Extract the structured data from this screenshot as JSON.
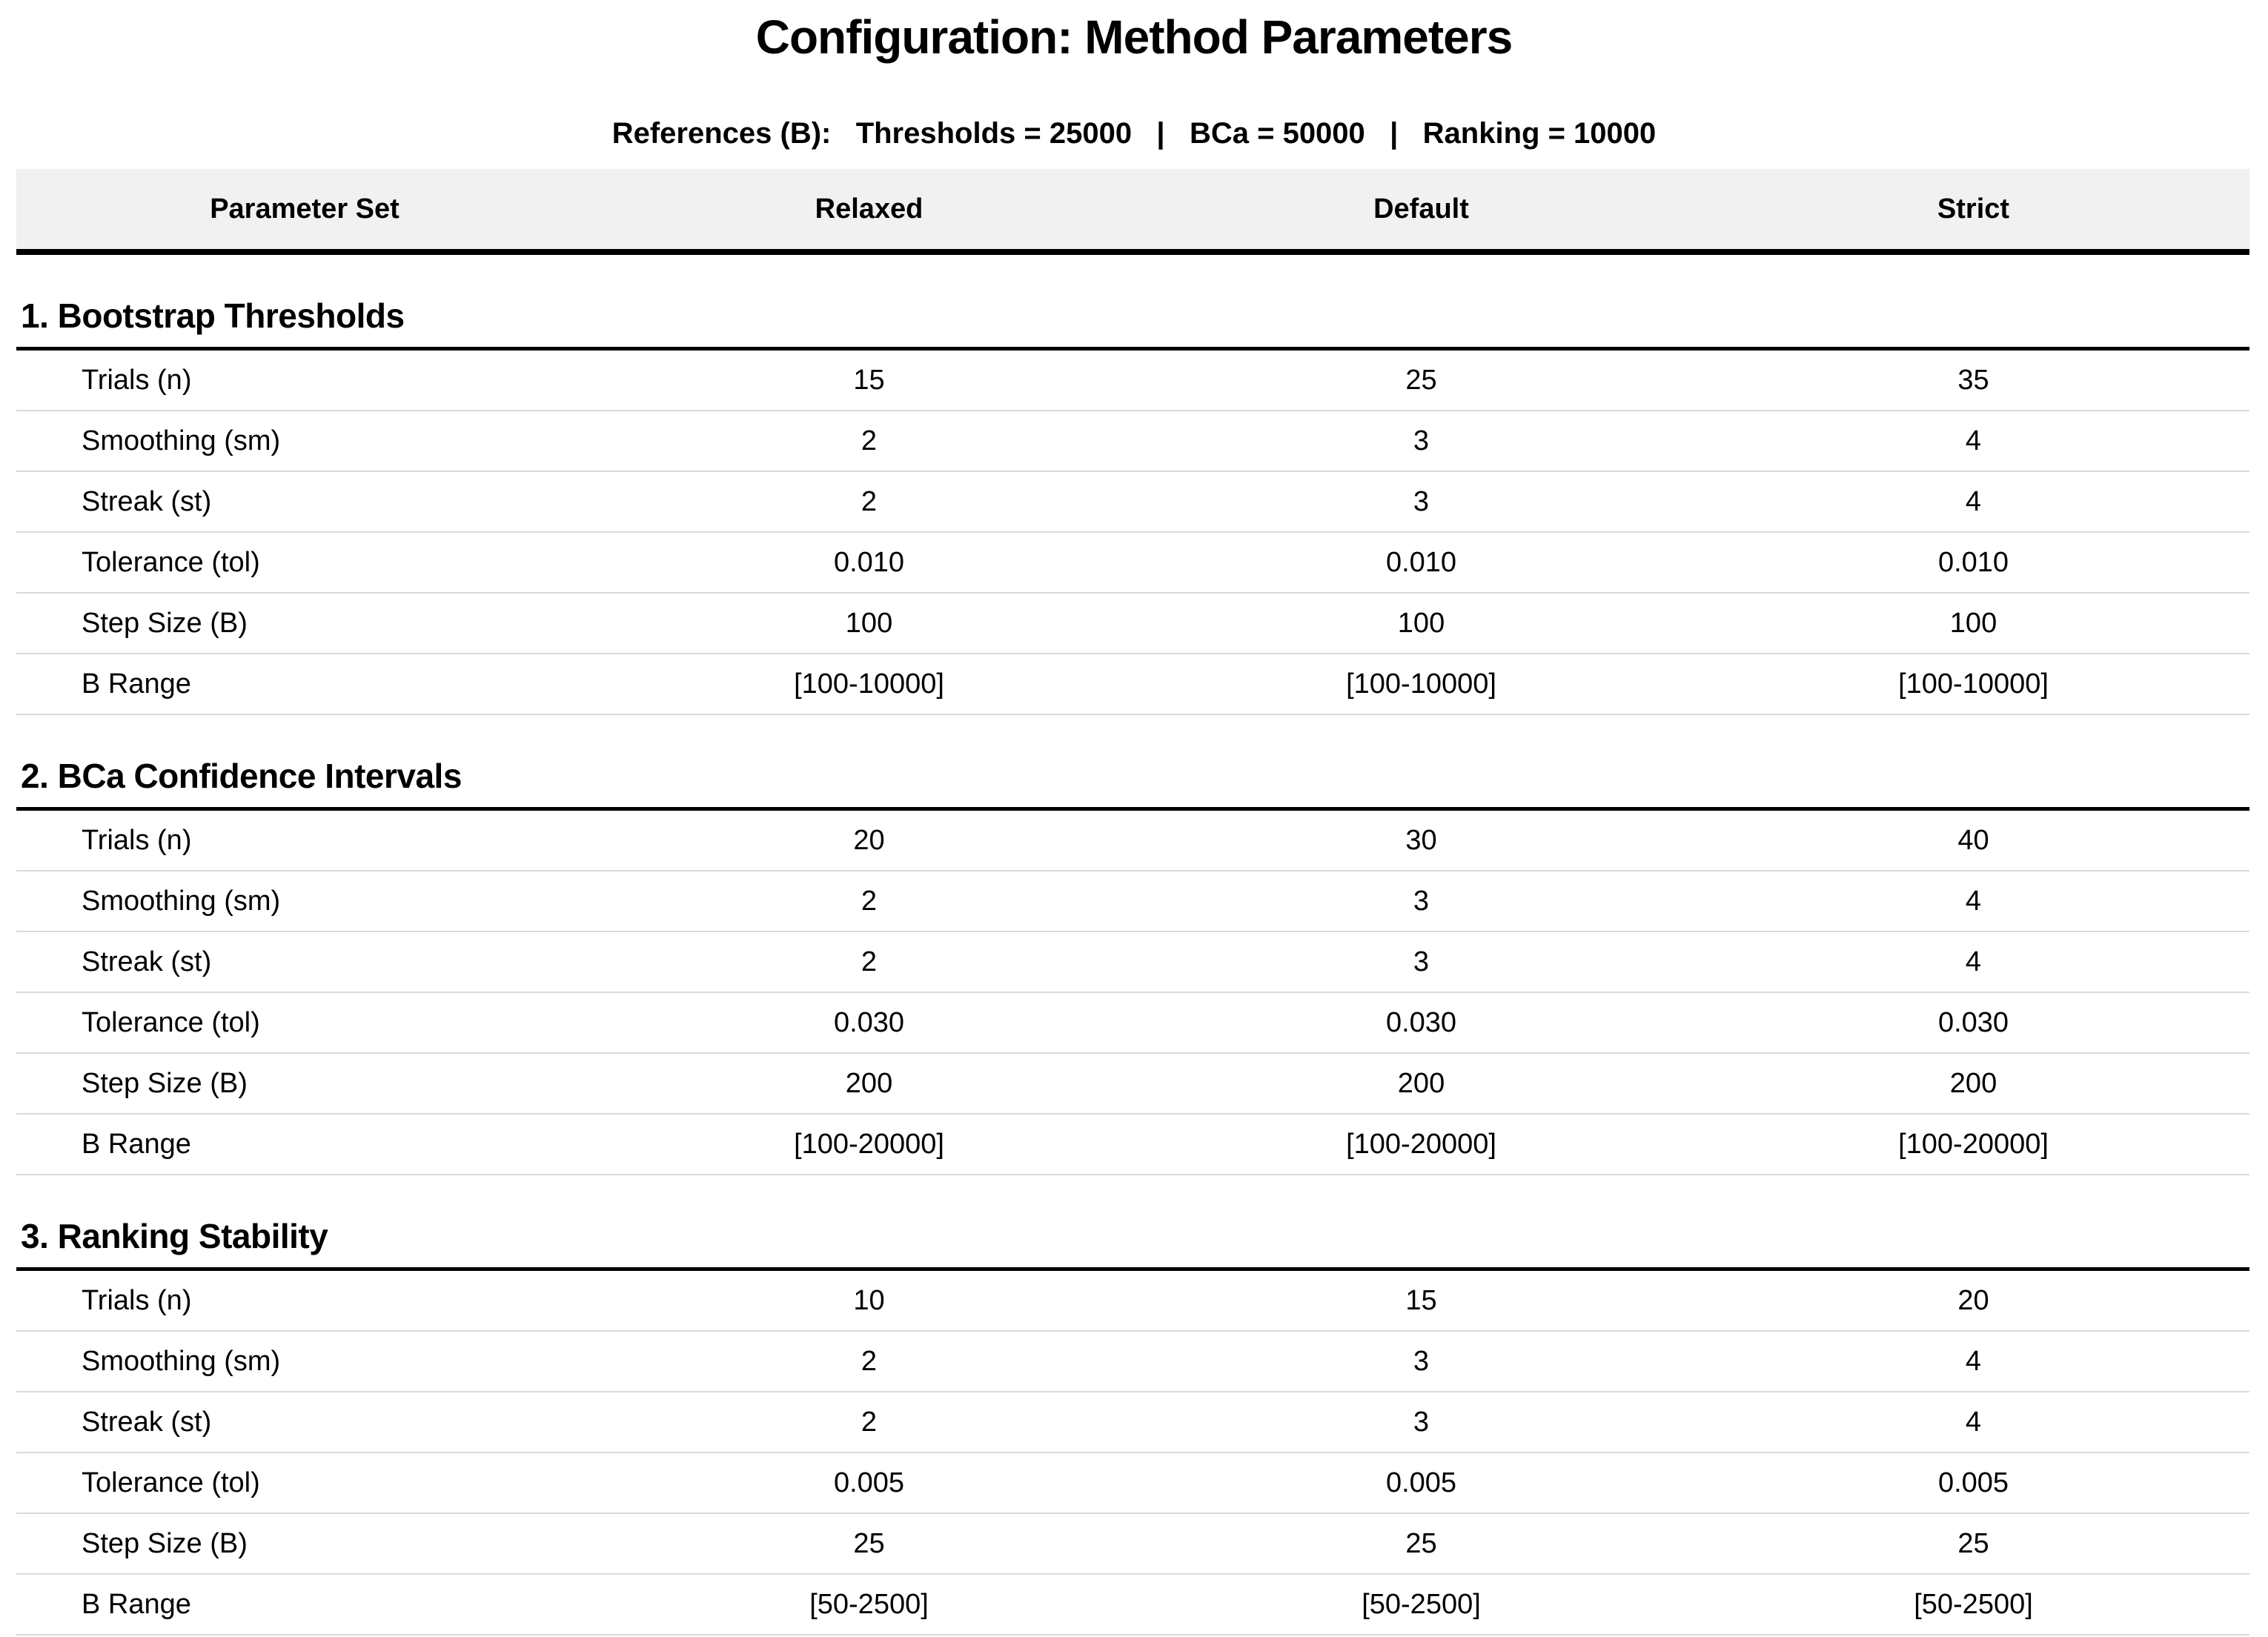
{
  "title": "Configuration: Method Parameters",
  "subtitle": "References (B):   Thresholds = 25000   |   BCa = 50000   |   Ranking = 10000",
  "table": {
    "columns": [
      "Parameter Set",
      "Relaxed",
      "Default",
      "Strict"
    ],
    "sections": [
      {
        "heading": "1. Bootstrap Thresholds",
        "rows": [
          {
            "label": "Trials (n)",
            "values": [
              "15",
              "25",
              "35"
            ]
          },
          {
            "label": "Smoothing (sm)",
            "values": [
              "2",
              "3",
              "4"
            ]
          },
          {
            "label": "Streak (st)",
            "values": [
              "2",
              "3",
              "4"
            ]
          },
          {
            "label": "Tolerance (tol)",
            "values": [
              "0.010",
              "0.010",
              "0.010"
            ]
          },
          {
            "label": "Step Size (B)",
            "values": [
              "100",
              "100",
              "100"
            ]
          },
          {
            "label": "B Range",
            "values": [
              "[100-10000]",
              "[100-10000]",
              "[100-10000]"
            ]
          }
        ]
      },
      {
        "heading": "2. BCa Confidence Intervals",
        "rows": [
          {
            "label": "Trials (n)",
            "values": [
              "20",
              "30",
              "40"
            ]
          },
          {
            "label": "Smoothing (sm)",
            "values": [
              "2",
              "3",
              "4"
            ]
          },
          {
            "label": "Streak (st)",
            "values": [
              "2",
              "3",
              "4"
            ]
          },
          {
            "label": "Tolerance (tol)",
            "values": [
              "0.030",
              "0.030",
              "0.030"
            ]
          },
          {
            "label": "Step Size (B)",
            "values": [
              "200",
              "200",
              "200"
            ]
          },
          {
            "label": "B Range",
            "values": [
              "[100-20000]",
              "[100-20000]",
              "[100-20000]"
            ]
          }
        ]
      },
      {
        "heading": "3. Ranking Stability",
        "rows": [
          {
            "label": "Trials (n)",
            "values": [
              "10",
              "15",
              "20"
            ]
          },
          {
            "label": "Smoothing (sm)",
            "values": [
              "2",
              "3",
              "4"
            ]
          },
          {
            "label": "Streak (st)",
            "values": [
              "2",
              "3",
              "4"
            ]
          },
          {
            "label": "Tolerance (tol)",
            "values": [
              "0.005",
              "0.005",
              "0.005"
            ]
          },
          {
            "label": "Step Size (B)",
            "values": [
              "25",
              "25",
              "25"
            ]
          },
          {
            "label": "B Range",
            "values": [
              "[50-2500]",
              "[50-2500]",
              "[50-2500]"
            ]
          }
        ]
      }
    ]
  },
  "colors": {
    "header_background": "#f1f1f1",
    "heavy_rule": "#000000",
    "row_divider": "#d9d9d9",
    "text": "#000000"
  }
}
